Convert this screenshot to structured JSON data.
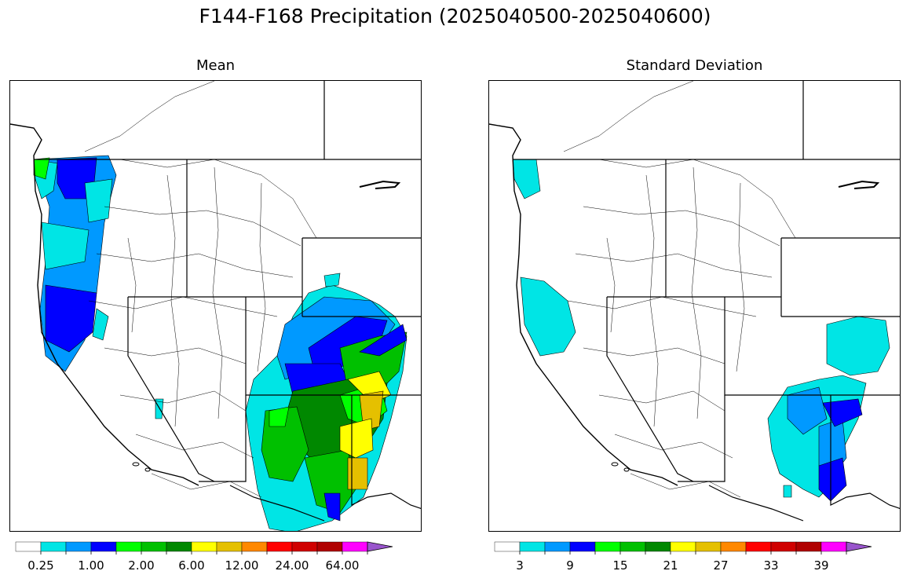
{
  "title": "F144-F168 Precipitation (2025040500-2025040600)",
  "panels": [
    {
      "subtitle": "Mean"
    },
    {
      "subtitle": "Standard Deviation"
    }
  ],
  "colorbars": [
    {
      "colors": [
        "#ffffff",
        "#00e5e5",
        "#0099ff",
        "#0000ff",
        "#00ff00",
        "#00c000",
        "#008800",
        "#ffff00",
        "#e5c000",
        "#ff8800",
        "#ff0000",
        "#d00000",
        "#b00000",
        "#ff00ff",
        "#9955cc"
      ],
      "tick_labels": [
        "0.25",
        "1.00",
        "2.00",
        "6.00",
        "12.00",
        "24.00",
        "64.00"
      ]
    },
    {
      "colors": [
        "#ffffff",
        "#00e5e5",
        "#0099ff",
        "#0000ff",
        "#00ff00",
        "#00c000",
        "#008800",
        "#ffff00",
        "#e5c000",
        "#ff8800",
        "#ff0000",
        "#d00000",
        "#b00000",
        "#ff00ff",
        "#9955cc"
      ],
      "tick_labels": [
        "3",
        "9",
        "15",
        "21",
        "27",
        "33",
        "39"
      ]
    }
  ]
}
